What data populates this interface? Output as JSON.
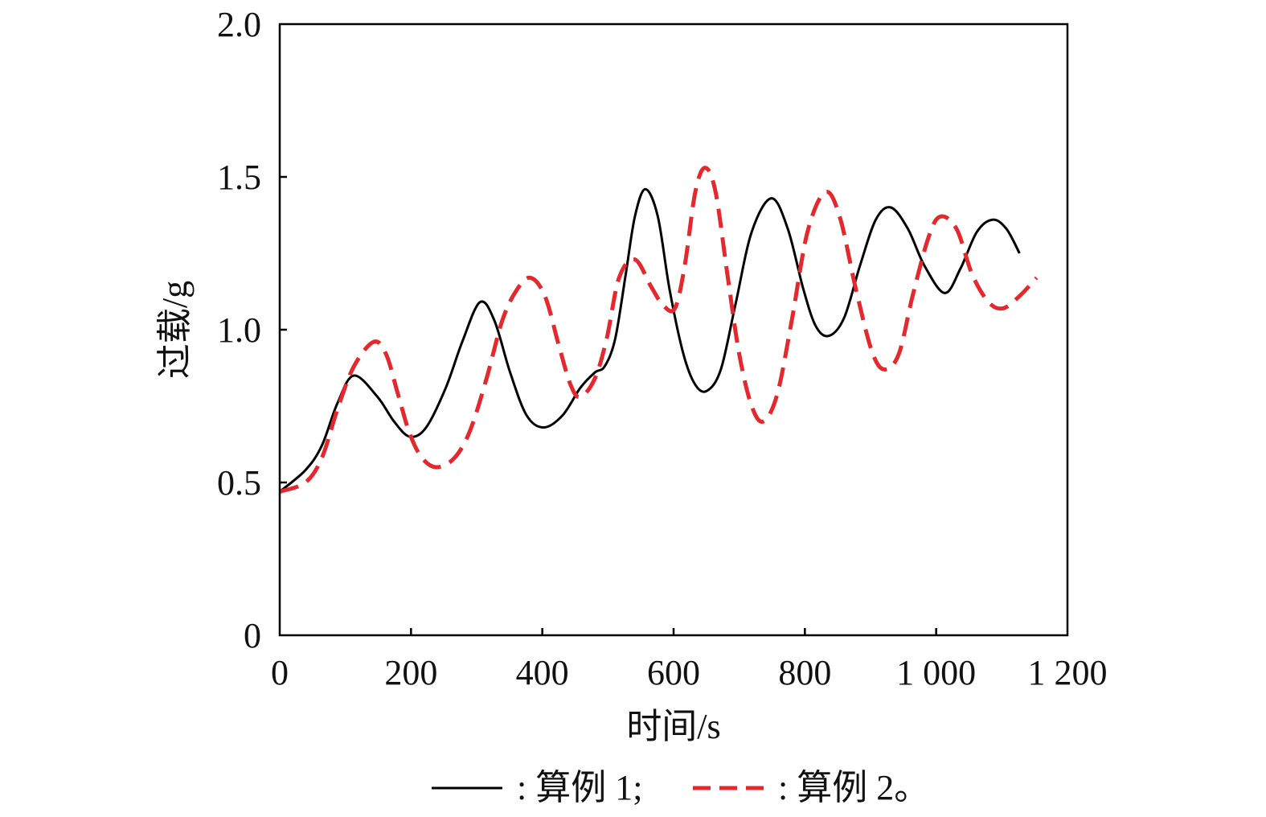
{
  "chart_data": {
    "type": "line",
    "xlabel": "时间/s",
    "ylabel": "过载/g",
    "xlim": [
      0,
      1200
    ],
    "ylim": [
      0,
      2.0
    ],
    "x_ticks": [
      0,
      200,
      400,
      600,
      800,
      1000,
      1200
    ],
    "x_tick_labels": [
      "0",
      "200",
      "400",
      "600",
      "800",
      "1 000",
      "1 200"
    ],
    "y_ticks": [
      0,
      0.5,
      1.0,
      1.5,
      2.0
    ],
    "y_tick_labels": [
      "0",
      "0.5",
      "1.0",
      "1.5",
      "2.0"
    ],
    "grid": false,
    "legend_position": "bottom",
    "series": [
      {
        "name": "算例 1",
        "color": "#000000",
        "line_style": "solid",
        "x": [
          0,
          39,
          64,
          88,
          113,
          149,
          174,
          198,
          223,
          253,
          278,
          305,
          327,
          351,
          376,
          402,
          431,
          458,
          480,
          495,
          511,
          527,
          541,
          557,
          576,
          594,
          615,
          633,
          651,
          672,
          694,
          719,
          749,
          774,
          798,
          817,
          837,
          860,
          884,
          908,
          931,
          957,
          982,
          1013,
          1037,
          1062,
          1086,
          1107,
          1127
        ],
        "y": [
          0.47,
          0.54,
          0.62,
          0.76,
          0.85,
          0.78,
          0.7,
          0.65,
          0.68,
          0.81,
          0.96,
          1.09,
          1.03,
          0.86,
          0.72,
          0.68,
          0.72,
          0.81,
          0.86,
          0.88,
          0.97,
          1.18,
          1.37,
          1.46,
          1.37,
          1.13,
          0.92,
          0.82,
          0.8,
          0.87,
          1.08,
          1.32,
          1.43,
          1.33,
          1.13,
          1.01,
          0.98,
          1.04,
          1.21,
          1.36,
          1.4,
          1.33,
          1.21,
          1.12,
          1.2,
          1.32,
          1.36,
          1.33,
          1.25
        ]
      },
      {
        "name": "算例 2",
        "color": "#e5282d",
        "line_style": "dashed",
        "x": [
          0,
          39,
          64,
          88,
          113,
          143,
          162,
          180,
          198,
          217,
          239,
          266,
          290,
          315,
          339,
          361,
          382,
          404,
          425,
          443,
          458,
          480,
          498,
          517,
          541,
          566,
          584,
          602,
          617,
          633,
          648,
          664,
          682,
          700,
          719,
          737,
          758,
          780,
          804,
          831,
          853,
          878,
          902,
          921,
          943,
          964,
          988,
          1006,
          1031,
          1055,
          1080,
          1102,
          1127,
          1153
        ],
        "y": [
          0.47,
          0.5,
          0.58,
          0.74,
          0.88,
          0.96,
          0.92,
          0.79,
          0.66,
          0.58,
          0.55,
          0.58,
          0.67,
          0.84,
          1.03,
          1.13,
          1.17,
          1.11,
          0.95,
          0.82,
          0.78,
          0.84,
          0.97,
          1.17,
          1.23,
          1.14,
          1.08,
          1.07,
          1.21,
          1.45,
          1.53,
          1.45,
          1.18,
          0.92,
          0.75,
          0.7,
          0.79,
          1.03,
          1.32,
          1.45,
          1.37,
          1.13,
          0.93,
          0.87,
          0.92,
          1.11,
          1.3,
          1.37,
          1.33,
          1.18,
          1.09,
          1.07,
          1.11,
          1.17
        ]
      }
    ]
  },
  "legend": {
    "items": [
      {
        "prefix": ": ",
        "suffix": ";"
      },
      {
        "prefix": ": ",
        "suffix": "。"
      }
    ]
  }
}
